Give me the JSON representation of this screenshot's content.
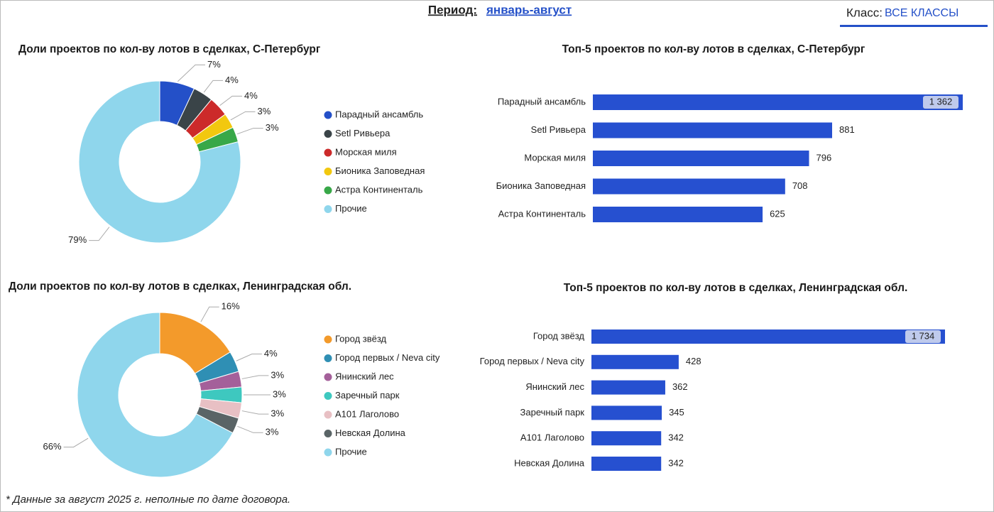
{
  "header": {
    "period_label": "Период:",
    "period_value": "январь-август",
    "class_label": "Класс:",
    "class_value": "ВСЕ КЛАССЫ"
  },
  "footnote": "* Данные за август 2025 г. неполные по дате договора.",
  "chart_data": [
    {
      "type": "pie",
      "title": "Доли проектов по кол-ву лотов в сделках, С-Петербург",
      "categories": [
        "Парадный ансамбль",
        "Setl Ривьера",
        "Морская миля",
        "Бионика Заповедная",
        "Астра Континенталь",
        "Прочие"
      ],
      "values": [
        7,
        4,
        4,
        3,
        3,
        79
      ],
      "value_labels": [
        "7%",
        "4%",
        "4%",
        "3%",
        "3%",
        "79%"
      ],
      "colors": [
        "#2450c8",
        "#3a4448",
        "#cc2a2a",
        "#f2c80f",
        "#38a848",
        "#8fd6ec"
      ]
    },
    {
      "type": "bar",
      "orientation": "horizontal",
      "title": "Топ-5 проектов по кол-ву лотов в сделках, С-Петербург",
      "categories": [
        "Парадный ансамбль",
        "Setl Ривьера",
        "Морская миля",
        "Бионика Заповедная",
        "Астра Континенталь"
      ],
      "values": [
        1362,
        881,
        796,
        708,
        625
      ],
      "value_labels": [
        "1 362",
        "881",
        "796",
        "708",
        "625"
      ],
      "color": "#2650d0"
    },
    {
      "type": "pie",
      "title": "Доли проектов по кол-ву лотов в сделках, Ленинградская обл.",
      "categories": [
        "Город звёзд",
        "Город первых / Neva city",
        "Янинский лес",
        "Заречный парк",
        "А101 Лаголово",
        "Невская Долина",
        "Прочие"
      ],
      "values": [
        16,
        4,
        3,
        3,
        3,
        3,
        66
      ],
      "value_labels": [
        "16%",
        "4%",
        "3%",
        "3%",
        "3%",
        "3%",
        "66%"
      ],
      "colors": [
        "#f39a2b",
        "#2f8fb4",
        "#a4609a",
        "#3ec8bf",
        "#e8c0c4",
        "#5a6466",
        "#8fd6ec"
      ]
    },
    {
      "type": "bar",
      "orientation": "horizontal",
      "title": "Топ-5 проектов по кол-ву лотов в сделках, Ленинградская обл.",
      "categories": [
        "Город звёзд",
        "Город первых / Neva city",
        "Янинский лес",
        "Заречный парк",
        "А101 Лаголово",
        "Невская Долина"
      ],
      "values": [
        1734,
        428,
        362,
        345,
        342,
        342
      ],
      "value_labels": [
        "1 734",
        "428",
        "362",
        "345",
        "342",
        "342"
      ],
      "color": "#2650d0"
    }
  ]
}
